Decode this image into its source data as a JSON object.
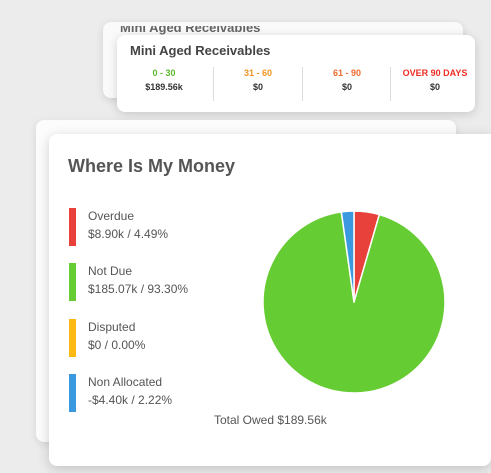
{
  "aged_receivables": {
    "title": "Mini Aged Receivables",
    "buckets": [
      {
        "label": "0 - 30",
        "value": "$189.56k",
        "color": "#5cb82e"
      },
      {
        "label": "31 - 60",
        "value": "$0",
        "color": "#f29423"
      },
      {
        "label": "61 - 90",
        "value": "$0",
        "color": "#ef6a2a"
      },
      {
        "label": "OVER 90 DAYS",
        "value": "$0",
        "color": "#ee2d24"
      }
    ]
  },
  "where_is_my_money": {
    "title": "Where Is My Money",
    "legend": [
      {
        "name": "Overdue",
        "value": "$8.90k / 4.49%",
        "color": "#e8413c"
      },
      {
        "name": "Not Due",
        "value": "$185.07k / 93.30%",
        "color": "#66cc33"
      },
      {
        "name": "Disputed",
        "value": "$0 / 0.00%",
        "color": "#fdb913"
      },
      {
        "name": "Non Allocated",
        "value": "-$4.40k / 2.22%",
        "color": "#3b99e0"
      }
    ],
    "total": "Total Owed $189.56k"
  },
  "chart_data": {
    "type": "pie",
    "labels": [
      "Overdue",
      "Not Due",
      "Disputed",
      "Non Allocated"
    ],
    "values": [
      4.49,
      93.3,
      0.0,
      2.22
    ],
    "amounts": [
      "$8.90k",
      "$185.07k",
      "$0",
      "-$4.40k"
    ],
    "colors": [
      "#e8413c",
      "#66cc33",
      "#fdb913",
      "#3b99e0"
    ],
    "start": "top, clockwise",
    "legend": "left"
  }
}
